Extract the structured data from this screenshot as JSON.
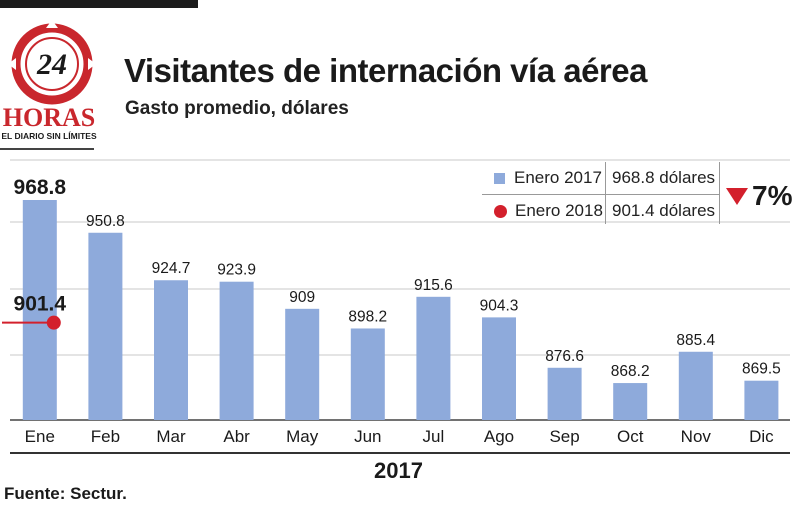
{
  "logo": {
    "number": "24",
    "name": "HORAS",
    "tagline": "EL DIARIO SIN LÍMITES"
  },
  "header": {
    "title": "Visitantes de internación vía aérea",
    "subtitle": "Gasto promedio, dólares"
  },
  "legend": {
    "rows": [
      {
        "label": "Enero 2017",
        "value": "968.8 dólares",
        "marker": "bar"
      },
      {
        "label": "Enero 2018",
        "value": "901.4 dólares",
        "marker": "dot"
      }
    ],
    "change": "7%",
    "change_direction": "down"
  },
  "chart_data": {
    "type": "bar",
    "categories": [
      "Ene",
      "Feb",
      "Mar",
      "Abr",
      "May",
      "Jun",
      "Jul",
      "Ago",
      "Sep",
      "Oct",
      "Nov",
      "Dic"
    ],
    "series": [
      {
        "values": [
          968.8,
          950.8,
          924.7,
          923.9,
          909,
          898.2,
          915.6,
          904.3,
          876.6,
          868.2,
          885.4,
          869.5
        ]
      }
    ],
    "value_labels": [
      "968.8",
      "950.8",
      "924.7",
      "923.9",
      "909",
      "898.2",
      "915.6",
      "904.3",
      "876.6",
      "868.2",
      "885.4",
      "869.5"
    ],
    "highlight_point": {
      "category": "Ene",
      "value": 901.4,
      "label": "901.4"
    },
    "xlabel": "2017",
    "ylabel": "",
    "grid": true,
    "colors": {
      "bar": "#8eaadb",
      "point": "#d3202c",
      "grid": "#c8c8c8"
    }
  },
  "footer": {
    "year": "2017",
    "source": "Fuente: Sectur."
  }
}
